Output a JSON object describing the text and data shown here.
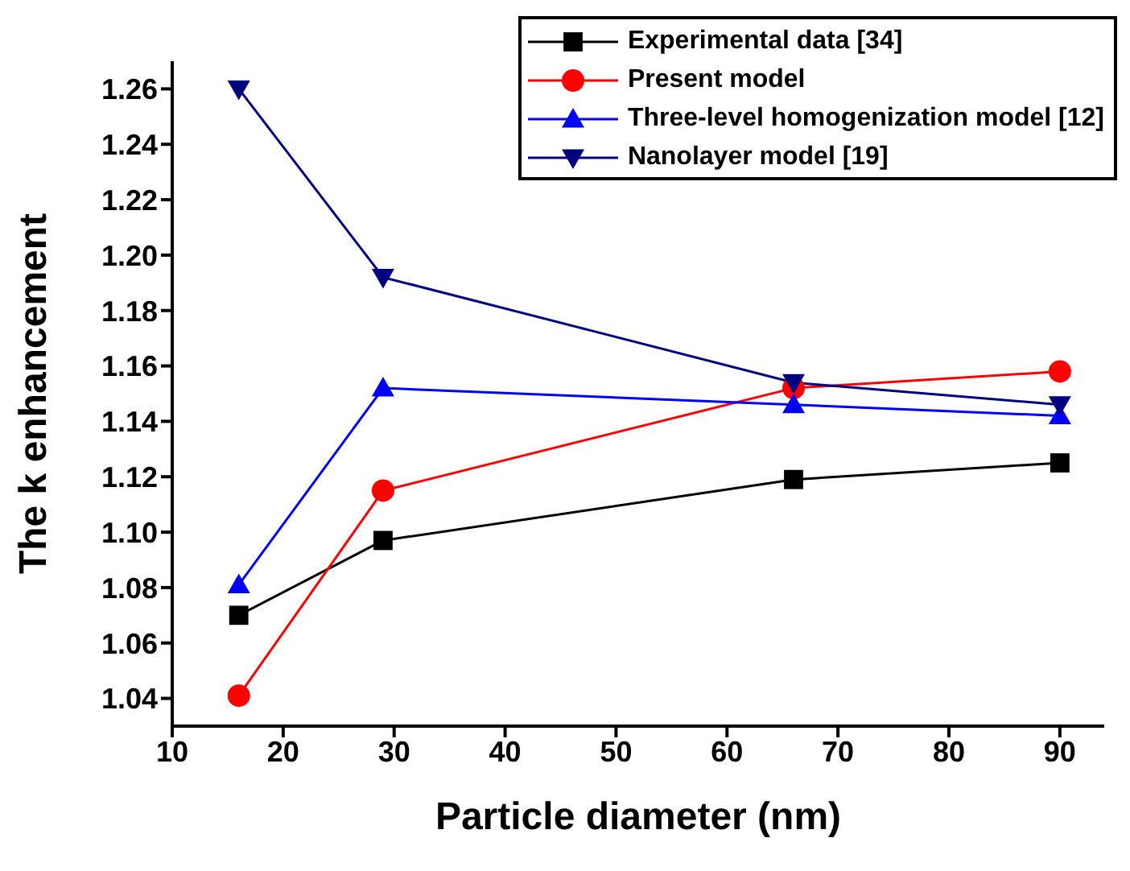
{
  "chart_data": {
    "type": "line",
    "xlabel": "Particle diameter (nm)",
    "ylabel": "The k enhancement",
    "xlim": [
      10,
      94
    ],
    "xticks": [
      10,
      20,
      30,
      40,
      50,
      60,
      70,
      80,
      90
    ],
    "ylim": [
      1.03,
      1.27
    ],
    "yticks": [
      1.04,
      1.06,
      1.08,
      {
        "value": 1.1,
        "label": "1.10"
      },
      1.12,
      1.14,
      1.16,
      1.18,
      {
        "value": 1.2,
        "label": "1.20"
      },
      1.22,
      1.24,
      1.26
    ],
    "x": [
      16,
      29,
      66,
      90
    ],
    "legend": "top right",
    "grid": false,
    "series": [
      {
        "name": "Experimental data [34]",
        "color": "#000000",
        "marker": "square",
        "values": [
          1.07,
          1.097,
          1.119,
          1.125
        ]
      },
      {
        "name": "Present model",
        "color": "#ff0000",
        "marker": "circle",
        "values": [
          1.041,
          1.115,
          1.152,
          1.158
        ]
      },
      {
        "name": "Three-level homogenization model [12]",
        "color": "#0000ff",
        "marker": "triangle",
        "values": [
          1.081,
          1.152,
          1.146,
          1.142
        ]
      },
      {
        "name": "Nanolayer model [19]",
        "color": "#000080",
        "marker": "triangle-down",
        "values": [
          1.26,
          1.192,
          1.154,
          1.146
        ]
      }
    ]
  }
}
